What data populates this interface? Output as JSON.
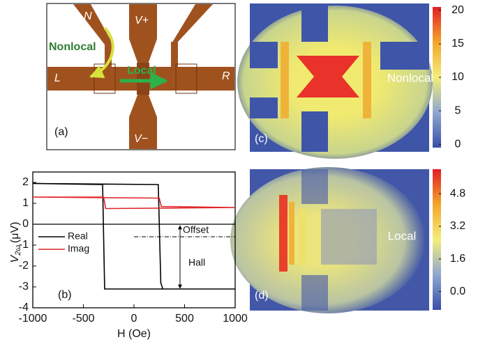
{
  "chart_data": [
    {
      "type": "line",
      "panel_label": "(b)",
      "y_label_symbol": "V",
      "y_label_subscript": "2ω",
      "y_label_unit": "(μV)",
      "x_label": "H (Oe)",
      "xlim": [
        -1000,
        1000
      ],
      "xticks": [
        -1000,
        -500,
        0,
        500,
        1000
      ],
      "ylim": [
        -4,
        2.5
      ],
      "yticks": [
        -4,
        -3,
        -2,
        -1,
        0,
        1,
        2
      ],
      "series": [
        {
          "name": "Real",
          "color": "#000000",
          "x": [
            -1000,
            240,
            265,
            285,
            1000,
            -290,
            -310,
            -1000
          ],
          "values": [
            1.95,
            1.9,
            -2.8,
            -3.1,
            -3.1,
            -3.1,
            1.9,
            1.95
          ]
        },
        {
          "name": "Imag",
          "color": "#e0262b",
          "x": [
            -1000,
            250,
            270,
            1000,
            -280,
            -300,
            -1000
          ],
          "values": [
            1.3,
            1.25,
            0.85,
            0.8,
            0.75,
            1.3,
            1.3
          ]
        }
      ],
      "annotations": [
        "Offset",
        "Hall"
      ]
    },
    {
      "type": "heatmap",
      "panel_label": "(c)",
      "label": "Nonlocal",
      "clim": [
        -0.5,
        20.5
      ],
      "cticks": [
        0,
        5,
        10,
        15,
        20
      ]
    },
    {
      "type": "heatmap",
      "panel_label": "(d)",
      "label": "Local",
      "clim": [
        -0.9,
        6.0
      ],
      "cticks": [
        {
          "value": 0,
          "label": "0.0"
        },
        1.6,
        3.2,
        4.8
      ]
    }
  ],
  "diagram": {
    "panel_label": "(a)",
    "labels": [
      "N",
      "V+",
      "L",
      "R",
      "V−",
      "Nonlocal",
      "Local"
    ]
  }
}
